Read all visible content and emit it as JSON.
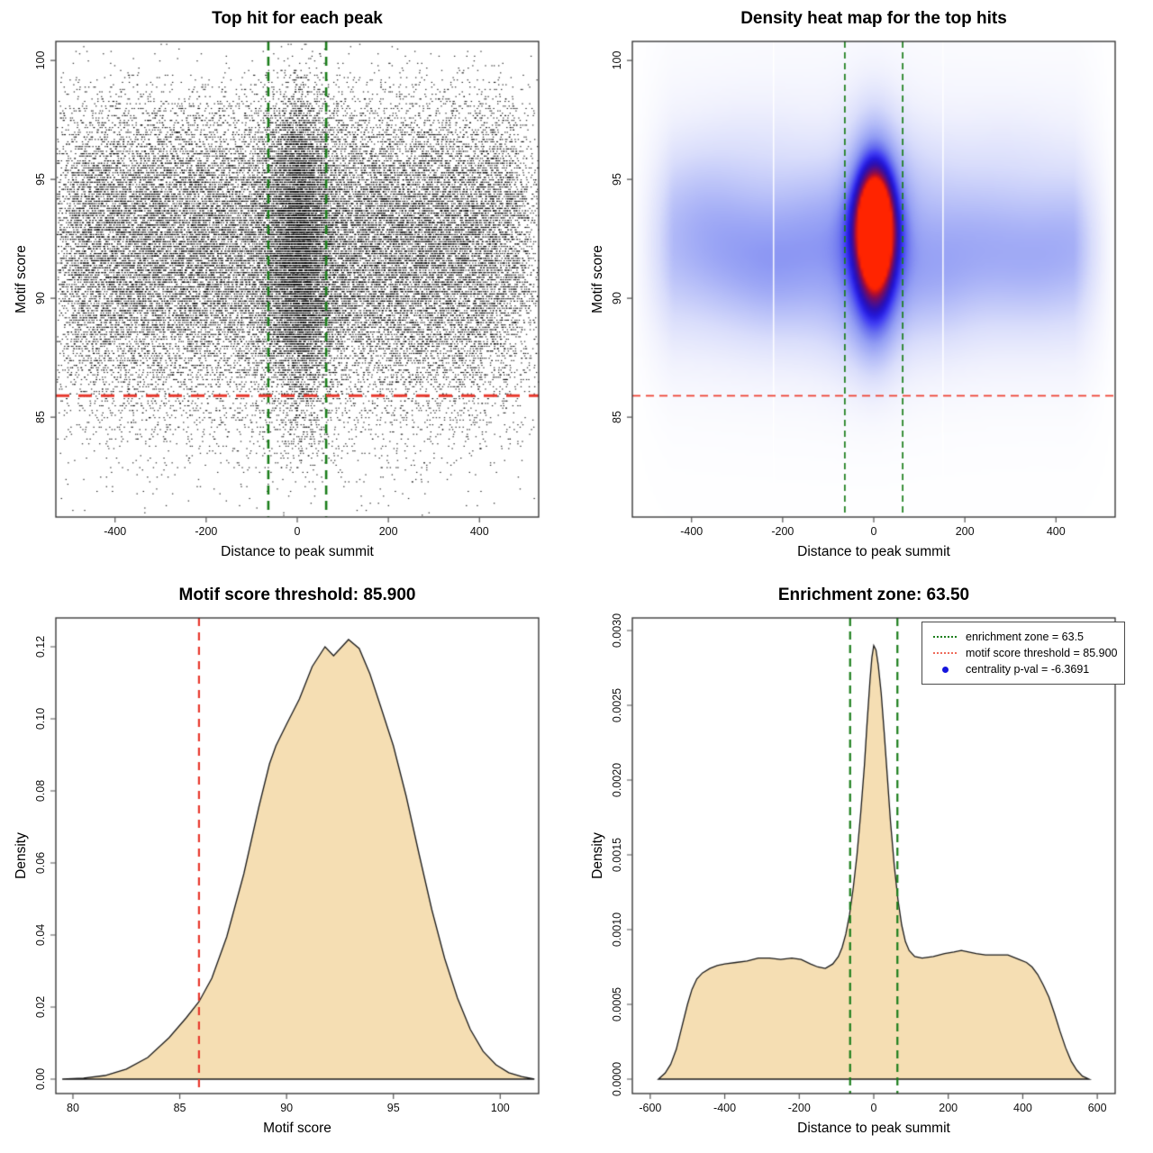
{
  "colors": {
    "green_line": "#1b7e1b",
    "red_line": "#e8392e",
    "heat_red_line": "#ee4133",
    "density_fill": "#f5deb3",
    "density_stroke": "#1a1a1a",
    "legend_red": "#ef6a5a",
    "legend_blue": "#1515dd",
    "box_border": "#2b2b2b",
    "tick_mark": "#555555",
    "point_color": "#000000",
    "heat_streak": "#ffffff"
  },
  "heat_palette": [
    [
      0.0,
      "#ffffff"
    ],
    [
      0.09,
      "#f0f1fd"
    ],
    [
      0.2,
      "#d9ddfb"
    ],
    [
      0.32,
      "#b7bff8"
    ],
    [
      0.44,
      "#939ef4"
    ],
    [
      0.54,
      "#6a72ef"
    ],
    [
      0.63,
      "#3f3cf3"
    ],
    [
      0.7,
      "#2419dd"
    ],
    [
      0.77,
      "#2a0fb4"
    ],
    [
      0.84,
      "#550e83"
    ],
    [
      0.9,
      "#860b52"
    ],
    [
      0.95,
      "#c41122"
    ],
    [
      1.0,
      "#ff2400"
    ]
  ],
  "chart_data": [
    {
      "type": "scatter",
      "title": "Top hit for each peak",
      "xlabel": "Distance to peak summit",
      "ylabel": "Motif score",
      "xlim": [
        -530,
        530
      ],
      "ylim": [
        80.8,
        100.8
      ],
      "x_ticks": [
        -400,
        -200,
        0,
        200,
        400
      ],
      "x_tick_labels": [
        "-400",
        "-200",
        "0",
        "200",
        "400"
      ],
      "y_ticks": [
        85,
        90,
        95,
        100
      ],
      "y_tick_labels": [
        "85",
        "90",
        "95",
        "100"
      ],
      "n_points": 42000,
      "y_quantize_step": 0.1,
      "x_marginal": "distance_density (panel 4 curve)",
      "y_marginal": "motif_score_density (panel 3 curve)",
      "vlines": [
        {
          "x": -63.5,
          "color": "green_line",
          "dash": [
            10,
            7
          ],
          "width": 2.6
        },
        {
          "x": 63.5,
          "color": "green_line",
          "dash": [
            10,
            7
          ],
          "width": 2.6
        }
      ],
      "hlines": [
        {
          "y": 85.9,
          "color": "red_line",
          "dash": [
            15,
            10
          ],
          "width": 3
        }
      ]
    },
    {
      "type": "heatmap",
      "title": "Density heat map for the top hits",
      "xlabel": "Distance to peak summit",
      "ylabel": "Motif score",
      "xlim": [
        -530,
        530
      ],
      "ylim": [
        80.8,
        100.8
      ],
      "x_ticks": [
        -400,
        -200,
        0,
        200,
        400
      ],
      "x_tick_labels": [
        "-400",
        "-200",
        "0",
        "200",
        "400"
      ],
      "y_ticks": [
        85,
        90,
        95,
        100
      ],
      "y_tick_labels": [
        "85",
        "90",
        "95",
        "100"
      ],
      "band": [
        [
          91.8,
          2.6,
          0.27
        ],
        [
          93.2,
          5.0,
          0.1
        ]
      ],
      "blobs": [
        [
          -330,
          92.4,
          0.085,
          85,
          2.1
        ],
        [
          -400,
          94.6,
          0.065,
          70,
          1.7
        ],
        [
          -215,
          90.7,
          0.075,
          70,
          1.9
        ],
        [
          -120,
          93.4,
          0.06,
          60,
          1.8
        ],
        [
          -270,
          96.6,
          0.04,
          90,
          1.5
        ],
        [
          130,
          90.3,
          0.07,
          60,
          1.9
        ],
        [
          240,
          92.3,
          0.085,
          85,
          2.0
        ],
        [
          360,
          91.2,
          0.07,
          70,
          1.9
        ],
        [
          440,
          92.9,
          0.06,
          60,
          1.8
        ],
        [
          300,
          96.4,
          0.04,
          90,
          1.5
        ],
        [
          -60,
          88.9,
          0.05,
          60,
          1.8
        ],
        [
          80,
          95.6,
          0.05,
          70,
          1.5
        ]
      ],
      "hotspot": [
        [
          3,
          93.3,
          0.62,
          34,
          1.5
        ],
        [
          4,
          91.5,
          0.4,
          31,
          1.9
        ],
        [
          2,
          95.2,
          0.17,
          31,
          1.3
        ],
        [
          0,
          92.6,
          0.2,
          52,
          3.2
        ],
        [
          1,
          97.0,
          0.09,
          38,
          1.6
        ],
        [
          2,
          88.6,
          0.11,
          37,
          1.7
        ]
      ],
      "white_streaks_x": [
        -220,
        152
      ],
      "vlines": [
        {
          "x": -63.5,
          "color": "green_line",
          "dash": [
            7,
            5
          ],
          "width": 1.7
        },
        {
          "x": 63.5,
          "color": "green_line",
          "dash": [
            7,
            5
          ],
          "width": 1.7
        }
      ],
      "hlines": [
        {
          "y": 85.9,
          "color": "heat_red_line",
          "dash": [
            9,
            6
          ],
          "width": 1.8
        }
      ]
    },
    {
      "type": "area",
      "title": "Motif score threshold: 85.900",
      "xlabel": "Motif score",
      "ylabel": "Density",
      "xlim": [
        79.2,
        101.8
      ],
      "ylim": [
        -0.004,
        0.128
      ],
      "x_ticks": [
        80,
        85,
        90,
        95,
        100
      ],
      "x_tick_labels": [
        "80",
        "85",
        "90",
        "95",
        "100"
      ],
      "y_ticks": [
        0.0,
        0.02,
        0.04,
        0.06,
        0.08,
        0.1,
        0.12
      ],
      "y_tick_labels": [
        "0.00",
        "0.02",
        "0.04",
        "0.06",
        "0.08",
        "0.10",
        "0.12"
      ],
      "curve": [
        [
          79.5,
          0
        ],
        [
          80.5,
          0.0003
        ],
        [
          81.5,
          0.001
        ],
        [
          82.5,
          0.0028
        ],
        [
          83.5,
          0.006
        ],
        [
          84.5,
          0.0115
        ],
        [
          85.3,
          0.017
        ],
        [
          85.9,
          0.0215
        ],
        [
          86.5,
          0.028
        ],
        [
          87.2,
          0.0395
        ],
        [
          88.0,
          0.057
        ],
        [
          88.7,
          0.0755
        ],
        [
          89.2,
          0.0875
        ],
        [
          89.5,
          0.0925
        ],
        [
          90.0,
          0.0985
        ],
        [
          90.6,
          0.1055
        ],
        [
          91.2,
          0.1145
        ],
        [
          91.8,
          0.12
        ],
        [
          92.2,
          0.1175
        ],
        [
          92.9,
          0.122
        ],
        [
          93.4,
          0.1195
        ],
        [
          93.9,
          0.1125
        ],
        [
          94.4,
          0.1035
        ],
        [
          95.0,
          0.0925
        ],
        [
          95.6,
          0.0785
        ],
        [
          96.2,
          0.0625
        ],
        [
          96.8,
          0.047
        ],
        [
          97.4,
          0.0335
        ],
        [
          98.0,
          0.0225
        ],
        [
          98.6,
          0.0138
        ],
        [
          99.2,
          0.0077
        ],
        [
          99.8,
          0.004
        ],
        [
          100.4,
          0.0018
        ],
        [
          101.0,
          0.0007
        ],
        [
          101.6,
          0
        ]
      ],
      "vlines": [
        {
          "x": 85.9,
          "color": "red_line",
          "dash": [
            9,
            7
          ],
          "width": 2.2
        }
      ],
      "hlines": []
    },
    {
      "type": "area",
      "title": "Enrichment zone: 63.50",
      "xlabel": "Distance to peak summit",
      "ylabel": "Density",
      "xlim": [
        -648,
        648
      ],
      "ylim": [
        -9.64e-05,
        0.0030843
      ],
      "x_ticks": [
        -600,
        -400,
        -200,
        0,
        200,
        400,
        600
      ],
      "x_tick_labels": [
        "-600",
        "-400",
        "-200",
        "0",
        "200",
        "400",
        "600"
      ],
      "y_ticks": [
        0.0,
        0.0005,
        0.001,
        0.0015,
        0.002,
        0.0025,
        0.003
      ],
      "y_tick_labels": [
        "0.0000",
        "0.0005",
        "0.0010",
        "0.0015",
        "0.0020",
        "0.0025",
        "0.0030"
      ],
      "curve": [
        [
          -578,
          0
        ],
        [
          -560,
          4e-05
        ],
        [
          -545,
          0.0001
        ],
        [
          -530,
          0.0002
        ],
        [
          -515,
          0.00035
        ],
        [
          -500,
          0.0005
        ],
        [
          -488,
          0.0006
        ],
        [
          -475,
          0.00067
        ],
        [
          -460,
          0.00071
        ],
        [
          -440,
          0.00074
        ],
        [
          -420,
          0.00076
        ],
        [
          -400,
          0.00077
        ],
        [
          -370,
          0.00078
        ],
        [
          -340,
          0.00079
        ],
        [
          -310,
          0.00081
        ],
        [
          -280,
          0.00081
        ],
        [
          -250,
          0.0008
        ],
        [
          -220,
          0.00081
        ],
        [
          -195,
          0.0008
        ],
        [
          -170,
          0.00077
        ],
        [
          -150,
          0.00075
        ],
        [
          -130,
          0.00074
        ],
        [
          -110,
          0.00077
        ],
        [
          -95,
          0.00082
        ],
        [
          -85,
          0.00088
        ],
        [
          -75,
          0.00097
        ],
        [
          -65,
          0.0011
        ],
        [
          -55,
          0.00128
        ],
        [
          -45,
          0.0015
        ],
        [
          -35,
          0.00178
        ],
        [
          -25,
          0.0021
        ],
        [
          -18,
          0.00238
        ],
        [
          -10,
          0.00267
        ],
        [
          -5,
          0.00282
        ],
        [
          0,
          0.0029
        ],
        [
          6,
          0.00287
        ],
        [
          12,
          0.00277
        ],
        [
          20,
          0.00258
        ],
        [
          28,
          0.00232
        ],
        [
          36,
          0.00204
        ],
        [
          45,
          0.00172
        ],
        [
          55,
          0.00143
        ],
        [
          65,
          0.0012
        ],
        [
          75,
          0.00103
        ],
        [
          85,
          0.00092
        ],
        [
          95,
          0.00086
        ],
        [
          110,
          0.00082
        ],
        [
          130,
          0.00081
        ],
        [
          160,
          0.00082
        ],
        [
          190,
          0.00084
        ],
        [
          215,
          0.00085
        ],
        [
          235,
          0.00086
        ],
        [
          255,
          0.00085
        ],
        [
          275,
          0.00084
        ],
        [
          300,
          0.00083
        ],
        [
          330,
          0.00083
        ],
        [
          360,
          0.00083
        ],
        [
          390,
          0.0008
        ],
        [
          410,
          0.00078
        ],
        [
          425,
          0.00075
        ],
        [
          440,
          0.0007
        ],
        [
          455,
          0.00063
        ],
        [
          470,
          0.00055
        ],
        [
          485,
          0.00044
        ],
        [
          500,
          0.00032
        ],
        [
          515,
          0.00021
        ],
        [
          530,
          0.00012
        ],
        [
          545,
          6e-05
        ],
        [
          560,
          2e-05
        ],
        [
          578,
          0
        ]
      ],
      "vlines": [
        {
          "x": -63.5,
          "color": "green_line",
          "dash": [
            9,
            6
          ],
          "width": 2.2
        },
        {
          "x": 63.5,
          "color": "green_line",
          "dash": [
            9,
            6
          ],
          "width": 2.2
        }
      ],
      "hlines": [],
      "legend": {
        "items": [
          {
            "swatch": "green-dotted-line",
            "label": "enrichment zone = 63.5"
          },
          {
            "swatch": "red-dotted-line",
            "label": "motif score threshold = 85.900"
          },
          {
            "swatch": "blue-dot",
            "label": "centrality p-val = -6.3691"
          }
        ]
      }
    }
  ]
}
